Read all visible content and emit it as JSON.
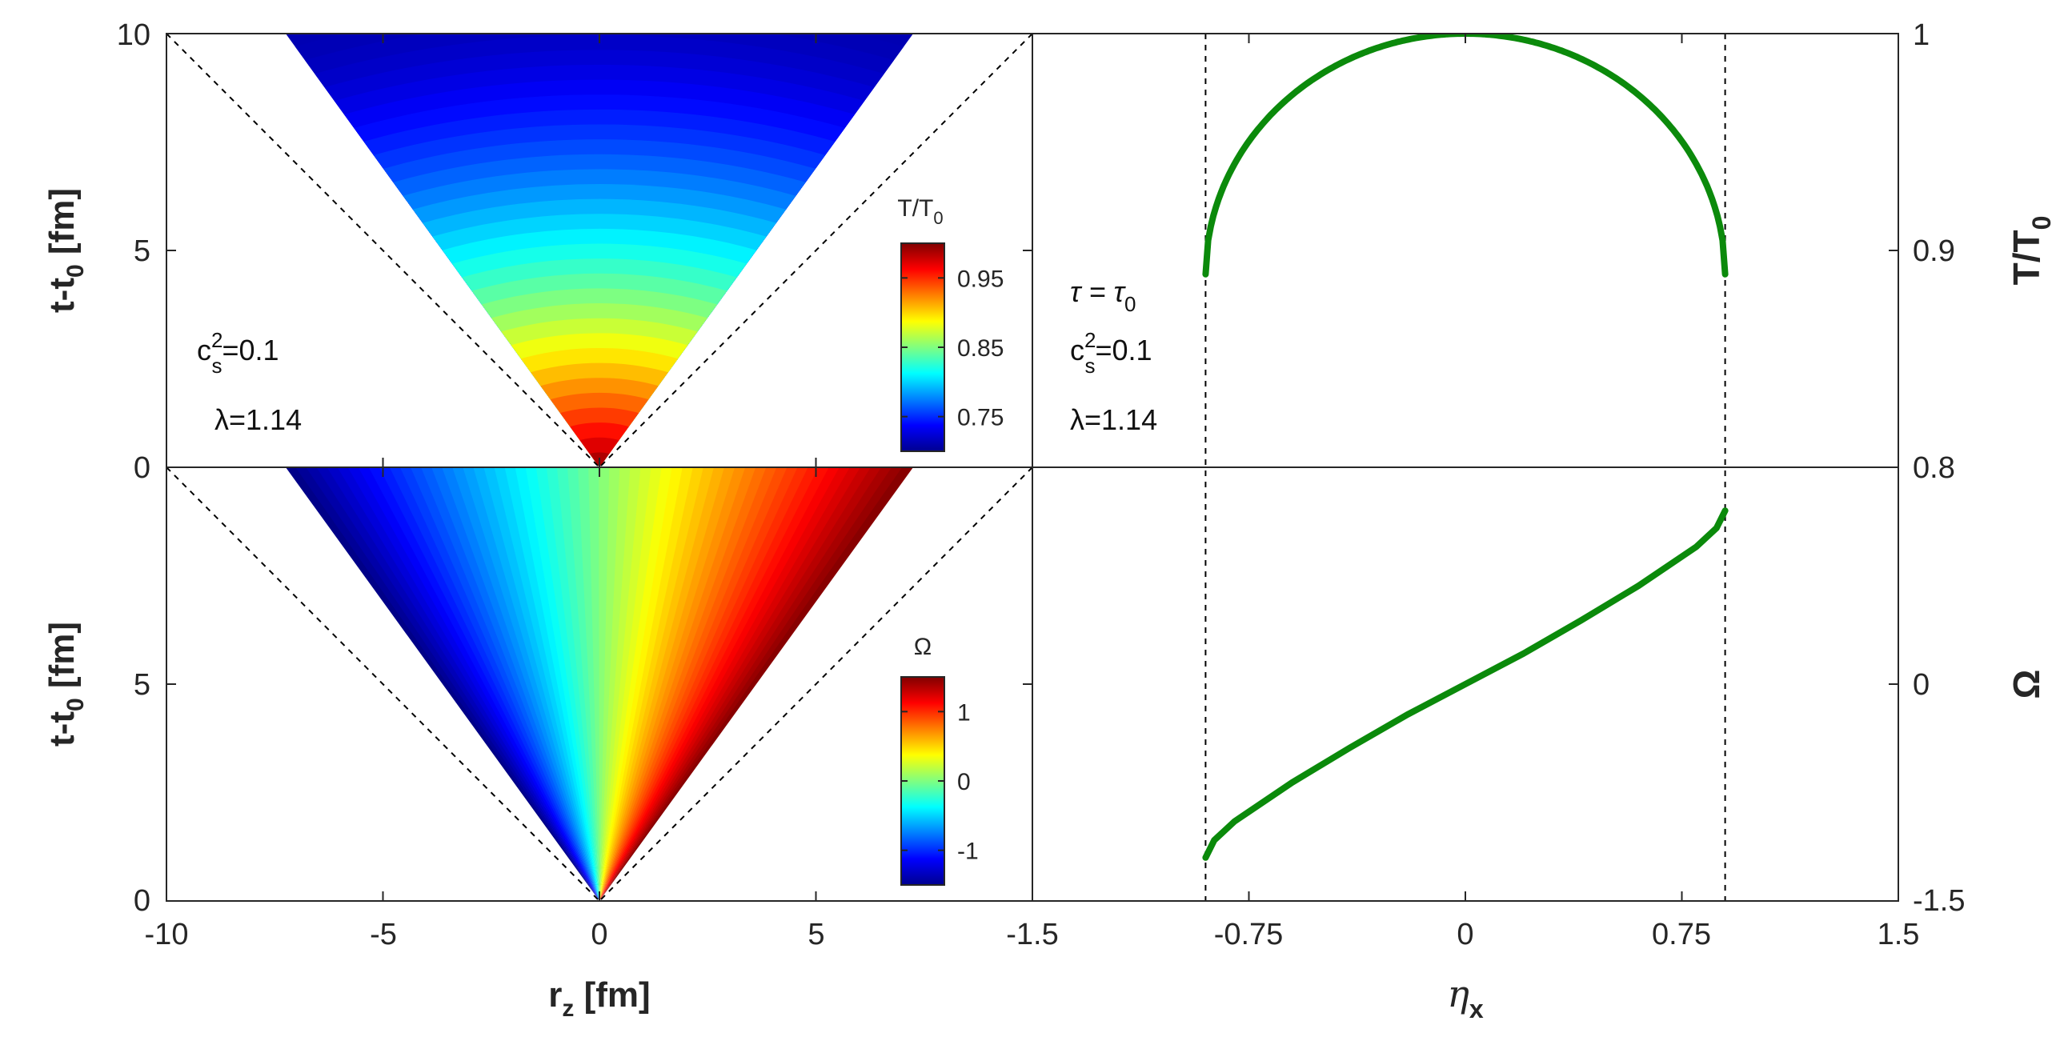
{
  "chart_data": [
    {
      "panel": "top-left",
      "type": "heatmap",
      "description_of_content": "",
      "xlim": [
        -10,
        10
      ],
      "ylim": [
        0,
        10
      ],
      "yticks": [
        "0",
        "5",
        "10"
      ],
      "ylabel": {
        "base": "t-t",
        "sub": "0",
        "unit": " [fm]"
      },
      "colorbar": {
        "title": {
          "base": "T/T",
          "sub": "0"
        },
        "ticks": [
          "0.95",
          "0.85",
          "0.75"
        ],
        "tick_values": [
          0.95,
          0.85,
          0.75
        ],
        "range": [
          0.7,
          1.0
        ],
        "colormap": "jet"
      },
      "domain_edge_slope": 1.38,
      "dashed_lines": "t = ±r_z",
      "annotations": [
        {
          "base": "c",
          "sup": "2",
          "sub": "s",
          "tail": "=0.1"
        },
        {
          "text": "λ=1.14"
        }
      ]
    },
    {
      "panel": "bottom-left",
      "type": "heatmap",
      "xlim": [
        -10,
        10
      ],
      "ylim": [
        0,
        10
      ],
      "xticks": [
        "-10",
        "-5",
        "0",
        "5"
      ],
      "yticks": [
        "0",
        "5"
      ],
      "xlabel": {
        "base": "r",
        "sub": "z",
        "unit": " [fm]"
      },
      "ylabel": {
        "base": "t-t",
        "sub": "0",
        "unit": " [fm]"
      },
      "colorbar": {
        "title": "Ω",
        "ticks": [
          "1",
          "0",
          "-1"
        ],
        "tick_values": [
          1,
          0,
          -1
        ],
        "range": [
          -1.5,
          1.5
        ],
        "colormap": "jet"
      },
      "domain_edge_slope": 1.38,
      "dashed_lines": "t = ±r_z"
    },
    {
      "panel": "top-right",
      "type": "line",
      "xlim": [
        -1.5,
        1.5
      ],
      "ylim": [
        0.8,
        1.0
      ],
      "yticks_right": [
        "1",
        "0.9"
      ],
      "ylabel_right": {
        "base": "T/T",
        "sub": "0"
      },
      "series": [
        {
          "color": "#0b8a0b",
          "x": [
            -0.9,
            -0.88,
            -0.85,
            -0.8,
            -0.7,
            -0.6,
            -0.45,
            -0.3,
            -0.15,
            0,
            0.15,
            0.3,
            0.45,
            0.6,
            0.7,
            0.8,
            0.85,
            0.88,
            0.9
          ],
          "y": [
            0.889,
            0.921,
            0.938,
            0.953,
            0.969,
            0.978,
            0.987,
            0.994,
            0.998,
            1.0,
            0.998,
            0.994,
            0.987,
            0.978,
            0.969,
            0.953,
            0.938,
            0.921,
            0.889
          ]
        }
      ],
      "vlines": [
        -0.9,
        0.9
      ],
      "annotations": [
        {
          "text": "τ = τ",
          "sub": "0"
        },
        {
          "base": "c",
          "sup": "2",
          "sub": "s",
          "tail": "=0.1"
        },
        {
          "text": "λ=1.14"
        }
      ]
    },
    {
      "panel": "bottom-right",
      "type": "line",
      "xlim": [
        -1.5,
        1.5
      ],
      "ylim": [
        -1.5,
        1.5
      ],
      "xticks": [
        "-1.5",
        "-0.75",
        "0",
        "0.75",
        "1.5"
      ],
      "yticks_right": [
        "0.8",
        "0",
        "-1.5"
      ],
      "ylabel_right": "Ω",
      "xlabel": {
        "base": "η",
        "sub": "x"
      },
      "series": [
        {
          "color": "#0b8a0b",
          "x": [
            -0.9,
            -0.87,
            -0.8,
            -0.6,
            -0.4,
            -0.2,
            0,
            0.2,
            0.4,
            0.6,
            0.8,
            0.87,
            0.9
          ],
          "y": [
            -1.2,
            -1.08,
            -0.95,
            -0.68,
            -0.44,
            -0.21,
            0.0,
            0.21,
            0.44,
            0.68,
            0.95,
            1.08,
            1.2
          ]
        }
      ],
      "vlines": [
        -0.9,
        0.9
      ]
    }
  ]
}
